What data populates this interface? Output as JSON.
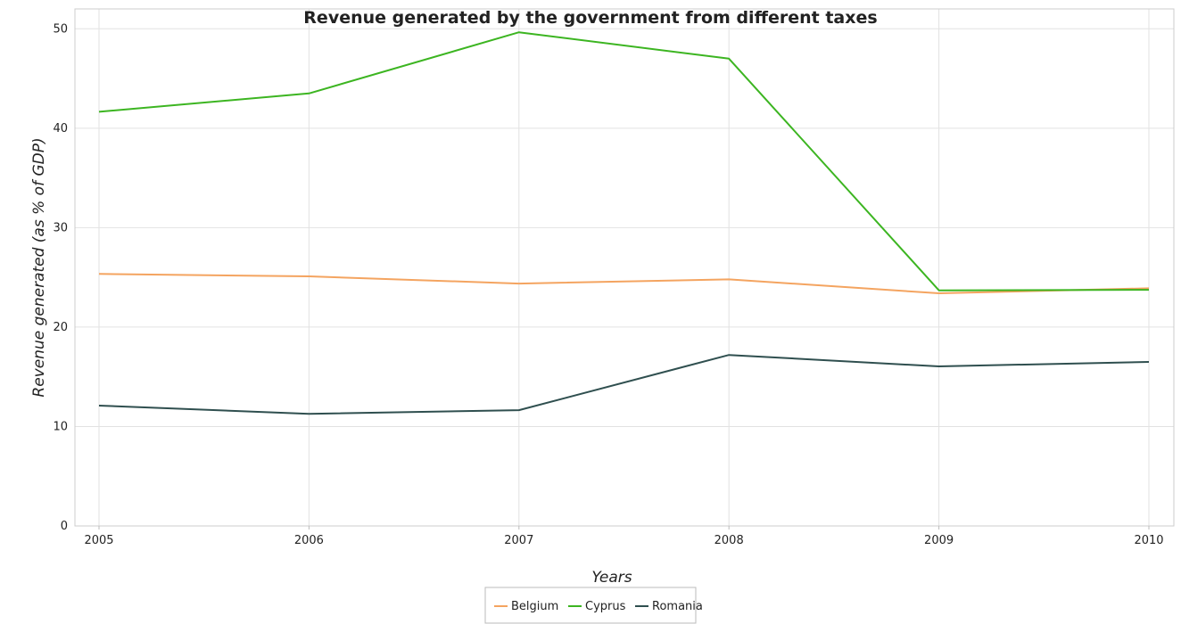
{
  "chart_data": {
    "type": "line",
    "title": "Revenue generated by the government from different taxes",
    "xlabel": "Years",
    "ylabel": "Revenue generated (as % of GDP)",
    "categories": [
      "2005",
      "2006",
      "2007",
      "2008",
      "2009",
      "2010"
    ],
    "ylim": [
      0,
      52
    ],
    "yticks": [
      "0",
      "10",
      "20",
      "30",
      "40",
      "50"
    ],
    "grid": true,
    "legend_position": "bottom-center",
    "series": [
      {
        "name": "Belgium",
        "color": "#f4a460",
        "values": [
          25.35,
          25.1,
          24.38,
          24.8,
          23.4,
          23.9
        ]
      },
      {
        "name": "Cyprus",
        "color": "#3cb521",
        "values": [
          41.65,
          43.5,
          49.65,
          47.0,
          23.7,
          23.75
        ]
      },
      {
        "name": "Romania",
        "color": "#2f4f4f",
        "values": [
          12.1,
          11.28,
          11.65,
          17.2,
          16.05,
          16.5
        ]
      }
    ]
  }
}
